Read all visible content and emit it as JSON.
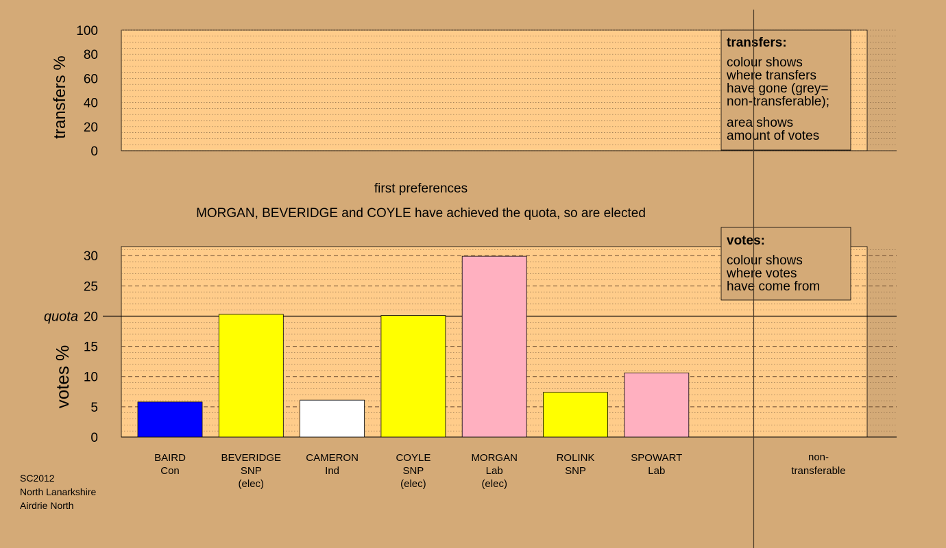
{
  "chart_data": [
    {
      "type": "area",
      "title": "",
      "xlabel": "",
      "ylabel": "transfers %",
      "ylim": [
        0,
        100
      ],
      "yticks": [
        0,
        20,
        40,
        60,
        80,
        100
      ],
      "series": [],
      "legend": {
        "placement": "top-right",
        "title": "transfers:",
        "lines1": [
          "colour shows",
          "where transfers",
          "have gone (grey=",
          "non-transferable);"
        ],
        "lines2": [
          "area shows",
          "amount of votes"
        ]
      }
    },
    {
      "type": "bar",
      "stage_label": "first preferences",
      "title": "MORGAN, BEVERIDGE and COYLE have achieved the quota, so are elected",
      "xlabel": "",
      "ylabel": "votes %",
      "ylim": [
        0,
        31.5
      ],
      "yticks": [
        0,
        5,
        10,
        15,
        20,
        25,
        30
      ],
      "quota": 20,
      "quota_label": "quota",
      "candidates": [
        {
          "name": "BAIRD",
          "party": "Con",
          "note": "",
          "value": 5.8,
          "color": "#0000ff"
        },
        {
          "name": "BEVERIDGE",
          "party": "SNP",
          "note": "(elec)",
          "value": 20.3,
          "color": "#ffff00"
        },
        {
          "name": "CAMERON",
          "party": "Ind",
          "note": "",
          "value": 6.1,
          "color": "#ffffff"
        },
        {
          "name": "COYLE",
          "party": "SNP",
          "note": "(elec)",
          "value": 20.1,
          "color": "#ffff00"
        },
        {
          "name": "MORGAN",
          "party": "Lab",
          "note": "(elec)",
          "value": 29.9,
          "color": "#ffb0c0"
        },
        {
          "name": "ROLINK",
          "party": "SNP",
          "note": "",
          "value": 7.4,
          "color": "#ffff00"
        },
        {
          "name": "SPOWART",
          "party": "Lab",
          "note": "",
          "value": 10.6,
          "color": "#ffb0c0"
        }
      ],
      "nontransferable": {
        "line1": "non-",
        "line2": "transferable",
        "value": 0
      },
      "legend": {
        "placement": "top-right",
        "title": "votes:",
        "lines": [
          "colour shows",
          "where votes",
          "have come from"
        ]
      }
    }
  ],
  "footer": {
    "lines": [
      "SC2012",
      "North Lanarkshire",
      "Airdrie North"
    ]
  },
  "colors": {
    "background": "#d4aa77",
    "plot_area": "#ffcc8a",
    "legend_box": "#d4aa77"
  }
}
